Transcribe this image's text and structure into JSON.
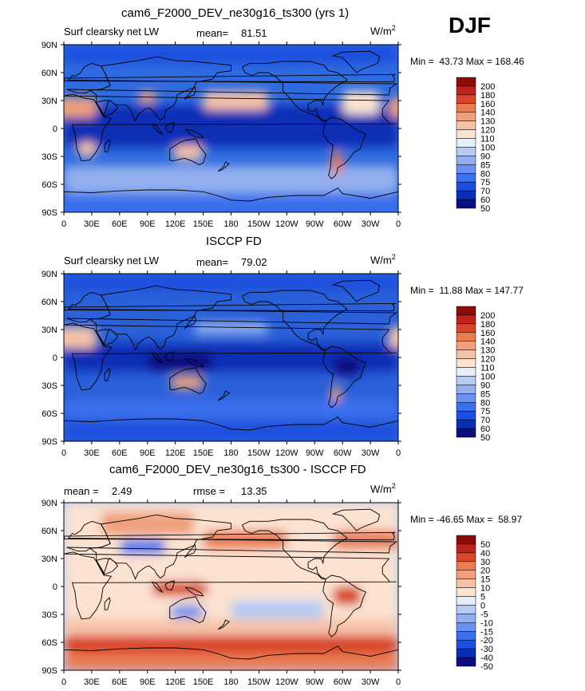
{
  "season": "DJF",
  "colors": {
    "ocean_default": "#2f6be0",
    "coast": "#000000",
    "cbar_main": [
      "#0a0e80",
      "#0a2fb5",
      "#1a4fe0",
      "#3a6fee",
      "#6a90f2",
      "#93afee",
      "#b7cbf2",
      "#e6eef8",
      "#fbe2d1",
      "#f6c2a7",
      "#f0a07c",
      "#ea7c52",
      "#d9462c",
      "#c0201c",
      "#8b0a0a"
    ],
    "cbar_diff": [
      "#0a0e80",
      "#0a2fb5",
      "#1a4fe0",
      "#3a6fee",
      "#6a90f2",
      "#93afee",
      "#b7cbf2",
      "#e6eef8",
      "#fbe2d1",
      "#f6c2a7",
      "#f0a07c",
      "#ea7c52",
      "#d9462c",
      "#c0201c",
      "#8b0a0a"
    ]
  },
  "chart_data": [
    {
      "type": "heatmap",
      "title": "cam6_F2000_DEV_ne30g16_ts300 (yrs 1)",
      "left_label": "Surf clearsky net LW",
      "mean_label": "mean=",
      "mean_value": "81.51",
      "units": "W/m",
      "units_sup": "2",
      "min_label": "Min =",
      "min_value": "43.73",
      "max_label": "Max =",
      "max_value": "168.46",
      "colorbar_ticks": [
        "200",
        "180",
        "160",
        "140",
        "130",
        "120",
        "110",
        "100",
        "90",
        "85",
        "80",
        "75",
        "70",
        "60",
        "50"
      ],
      "lat_ticks": [
        "90N",
        "60N",
        "30N",
        "0",
        "30S",
        "60S",
        "90S"
      ],
      "lon_ticks": [
        "0",
        "30E",
        "60E",
        "90E",
        "120E",
        "150E",
        "180",
        "150W",
        "120W",
        "90W",
        "60W",
        "30W",
        "0"
      ]
    },
    {
      "type": "heatmap",
      "title": "ISCCP FD",
      "left_label": "Surf clearsky net LW",
      "mean_label": "mean=",
      "mean_value": "79.02",
      "units": "W/m",
      "units_sup": "2",
      "min_label": "Min =",
      "min_value": "11.88",
      "max_label": "Max =",
      "max_value": "147.77",
      "colorbar_ticks": [
        "200",
        "180",
        "160",
        "140",
        "130",
        "120",
        "110",
        "100",
        "90",
        "85",
        "80",
        "75",
        "70",
        "60",
        "50"
      ],
      "lat_ticks": [
        "90N",
        "60N",
        "30N",
        "0",
        "30S",
        "60S",
        "90S"
      ],
      "lon_ticks": [
        "0",
        "30E",
        "60E",
        "90E",
        "120E",
        "150E",
        "180",
        "150W",
        "120W",
        "90W",
        "60W",
        "30W",
        "0"
      ]
    },
    {
      "type": "heatmap",
      "title": "cam6_F2000_DEV_ne30g16_ts300 - ISCCP FD",
      "mean_label": "mean =",
      "mean_value": "2.49",
      "rmse_label": "rmse =",
      "rmse_value": "13.35",
      "units": "W/m",
      "units_sup": "2",
      "min_label": "Min =",
      "min_value": "-46.65",
      "max_label": "Max =",
      "max_value": "58.97",
      "colorbar_ticks": [
        "50",
        "40",
        "30",
        "20",
        "15",
        "10",
        "5",
        "0",
        "-5",
        "-10",
        "-15",
        "-20",
        "-30",
        "-40",
        "-50"
      ],
      "lat_ticks": [
        "90N",
        "60N",
        "30N",
        "0",
        "30S",
        "60S",
        "90S"
      ],
      "lon_ticks": [
        "0",
        "30E",
        "60E",
        "90E",
        "120E",
        "150E",
        "180",
        "150W",
        "120W",
        "90W",
        "60W",
        "30W",
        "0"
      ]
    }
  ]
}
